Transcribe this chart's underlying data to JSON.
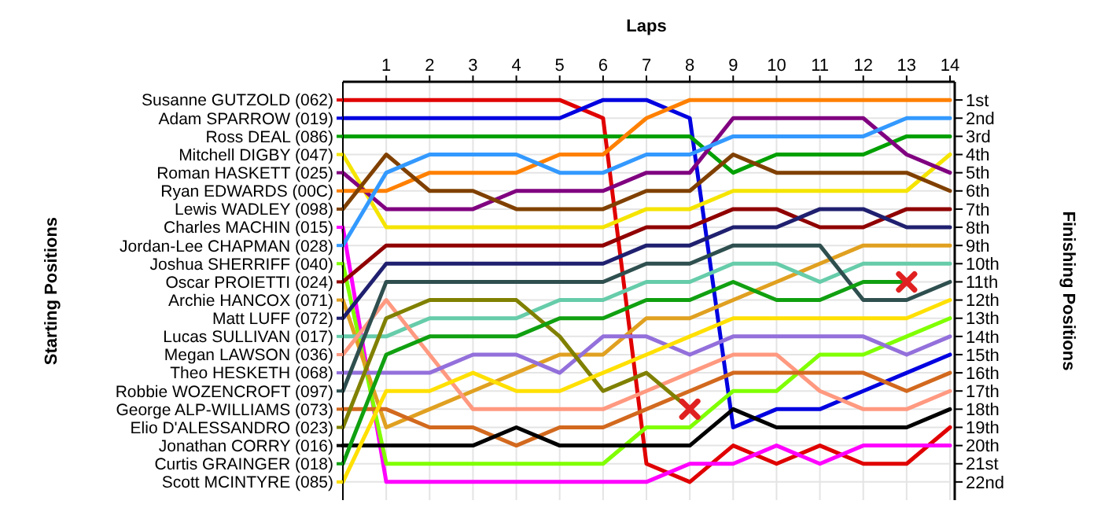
{
  "chart_data": {
    "type": "line",
    "xlabel": "Laps",
    "legend_title": "Starting Positions",
    "ylabel": "Finishing Positions",
    "x": [
      0,
      1,
      2,
      3,
      4,
      5,
      6,
      7,
      8,
      9,
      10,
      11,
      12,
      13,
      14
    ],
    "xlim": [
      0,
      14
    ],
    "xticks": [
      1,
      2,
      3,
      4,
      5,
      6,
      7,
      8,
      9,
      10,
      11,
      12,
      13,
      14
    ],
    "ylim": [
      23,
      0
    ],
    "yticks": [
      {
        "value": 1,
        "label": "1st"
      },
      {
        "value": 2,
        "label": "2nd"
      },
      {
        "value": 3,
        "label": "3rd"
      },
      {
        "value": 4,
        "label": "4th"
      },
      {
        "value": 5,
        "label": "5th"
      },
      {
        "value": 6,
        "label": "6th"
      },
      {
        "value": 7,
        "label": "7th"
      },
      {
        "value": 8,
        "label": "8th"
      },
      {
        "value": 9,
        "label": "9th"
      },
      {
        "value": 10,
        "label": "10th"
      },
      {
        "value": 11,
        "label": "11th"
      },
      {
        "value": 12,
        "label": "12th"
      },
      {
        "value": 13,
        "label": "13th"
      },
      {
        "value": 14,
        "label": "14th"
      },
      {
        "value": 15,
        "label": "15th"
      },
      {
        "value": 16,
        "label": "16th"
      },
      {
        "value": 17,
        "label": "17th"
      },
      {
        "value": 18,
        "label": "18th"
      },
      {
        "value": 19,
        "label": "19th"
      },
      {
        "value": 20,
        "label": "20th"
      },
      {
        "value": 21,
        "label": "21st"
      },
      {
        "value": 22,
        "label": "22nd"
      }
    ],
    "grid": true,
    "legend": "left",
    "marker": "none",
    "line_style": "solid",
    "series": [
      {
        "name": "Susanne GUTZOLD (062)",
        "color": "#e00000",
        "values": [
          1,
          1,
          1,
          1,
          1,
          1,
          2,
          21,
          22,
          20,
          21,
          20,
          21,
          21,
          19
        ]
      },
      {
        "name": "Adam SPARROW (019)",
        "color": "#0000e0",
        "values": [
          2,
          2,
          2,
          2,
          2,
          2,
          1,
          1,
          2,
          19,
          18,
          18,
          17,
          16,
          15
        ]
      },
      {
        "name": "Ross DEAL (086)",
        "color": "#00a000",
        "values": [
          3,
          3,
          3,
          3,
          3,
          3,
          3,
          3,
          3,
          5,
          4,
          4,
          4,
          3,
          3
        ]
      },
      {
        "name": "Mitchell DIGBY (047)",
        "color": "#f5e400",
        "values": [
          4,
          8,
          8,
          8,
          8,
          8,
          8,
          7,
          7,
          6,
          6,
          6,
          6,
          6,
          4
        ]
      },
      {
        "name": "Roman HASKETT (025)",
        "color": "#800080",
        "values": [
          5,
          7,
          7,
          7,
          6,
          6,
          6,
          5,
          5,
          2,
          2,
          2,
          2,
          4,
          5
        ]
      },
      {
        "name": "Ryan EDWARDS (00C)",
        "color": "#ff8000",
        "values": [
          6,
          6,
          5,
          5,
          5,
          4,
          4,
          2,
          1,
          1,
          1,
          1,
          1,
          1,
          1
        ]
      },
      {
        "name": "Lewis WADLEY (098)",
        "color": "#804000",
        "values": [
          7,
          4,
          6,
          6,
          7,
          7,
          7,
          6,
          6,
          4,
          5,
          5,
          5,
          5,
          6
        ]
      },
      {
        "name": "Charles MACHIN (015)",
        "color": "#ff00ff",
        "values": [
          8,
          22,
          22,
          22,
          22,
          22,
          22,
          22,
          21,
          21,
          20,
          21,
          20,
          20,
          20
        ]
      },
      {
        "name": "Jordan-Lee CHAPMAN (028)",
        "color": "#3399ff",
        "values": [
          9,
          5,
          4,
          4,
          4,
          5,
          5,
          4,
          4,
          3,
          3,
          3,
          3,
          2,
          2
        ]
      },
      {
        "name": "Joshua SHERRIFF (040)",
        "color": "#80ff00",
        "values": [
          10,
          21,
          21,
          21,
          21,
          21,
          21,
          19,
          19,
          17,
          17,
          15,
          15,
          14,
          13
        ]
      },
      {
        "name": "Oscar PROIETTI (024)",
        "color": "#900000",
        "values": [
          11,
          9,
          9,
          9,
          9,
          9,
          9,
          8,
          8,
          7,
          7,
          8,
          8,
          7,
          7
        ]
      },
      {
        "name": "Archie HANCOX (071)",
        "color": "#e0a020",
        "values": [
          12,
          19,
          18,
          17,
          16,
          15,
          15,
          13,
          13,
          12,
          11,
          10,
          9,
          9,
          9
        ]
      },
      {
        "name": "Matt LUFF (072)",
        "color": "#202070",
        "values": [
          13,
          10,
          10,
          10,
          10,
          10,
          10,
          9,
          9,
          8,
          8,
          7,
          7,
          8,
          8
        ]
      },
      {
        "name": "Lucas SULLIVAN (017)",
        "color": "#66ccaa",
        "values": [
          14,
          14,
          13,
          13,
          13,
          12,
          12,
          11,
          11,
          10,
          10,
          11,
          10,
          10,
          10
        ]
      },
      {
        "name": "Megan LAWSON (036)",
        "color": "#ff9980",
        "values": [
          15,
          12,
          15,
          18,
          18,
          18,
          18,
          17,
          16,
          15,
          15,
          17,
          18,
          18,
          17
        ]
      },
      {
        "name": "Theo HESKETH (068)",
        "color": "#9370db",
        "values": [
          16,
          16,
          16,
          15,
          15,
          16,
          14,
          14,
          15,
          14,
          14,
          14,
          14,
          15,
          14
        ]
      },
      {
        "name": "Robbie WOZENCROFT (097)",
        "color": "#2f4f4f",
        "values": [
          17,
          11,
          11,
          11,
          11,
          11,
          11,
          10,
          10,
          9,
          9,
          9,
          12,
          12,
          11
        ]
      },
      {
        "name": "George ALP-WILLIAMS (073)",
        "color": "#d2691e",
        "values": [
          18,
          18,
          19,
          19,
          20,
          19,
          19,
          18,
          17,
          16,
          16,
          16,
          16,
          17,
          16
        ]
      },
      {
        "name": "Elio D'ALESSANDRO (023)",
        "color": "#808000",
        "values": [
          19,
          13,
          12,
          12,
          12,
          14,
          17,
          16,
          18,
          null,
          null,
          null,
          null,
          null,
          null
        ]
      },
      {
        "name": "Jonathan CORRY (016)",
        "color": "#000000",
        "values": [
          20,
          20,
          20,
          20,
          19,
          20,
          20,
          20,
          20,
          18,
          19,
          19,
          19,
          19,
          18
        ]
      },
      {
        "name": "Curtis GRAINGER (018)",
        "color": "#10a010",
        "values": [
          21,
          15,
          14,
          14,
          14,
          13,
          13,
          12,
          12,
          11,
          12,
          12,
          11,
          11,
          null
        ]
      },
      {
        "name": "Scott MCINTYRE (085)",
        "color": "#ffe000",
        "values": [
          22,
          17,
          17,
          16,
          17,
          17,
          16,
          15,
          14,
          13,
          13,
          13,
          13,
          13,
          12
        ]
      },
      {
        "type": "scatter",
        "marker": "cross",
        "color": "#e02020",
        "x": [
          8,
          13
        ],
        "values": [
          18,
          11
        ]
      }
    ]
  }
}
